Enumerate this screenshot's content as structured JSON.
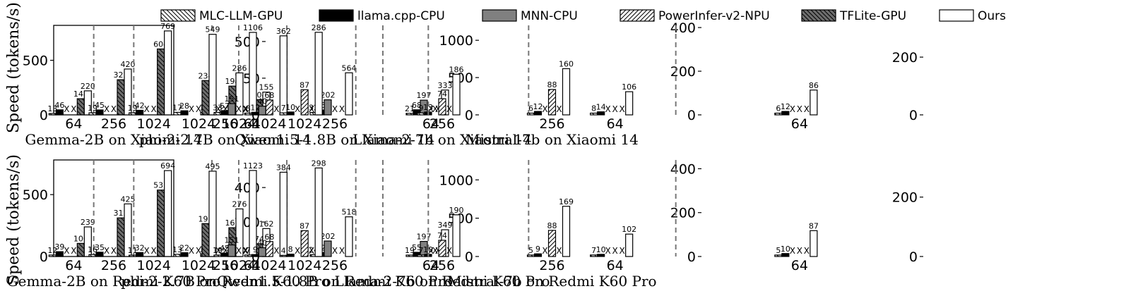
{
  "ylabel": "Speed (tokens/s)",
  "legend": [
    {
      "name": "MLC-LLM-GPU",
      "fill": "#ffffff",
      "hatch": "back"
    },
    {
      "name": "llama.cpp-CPU",
      "fill": "#000000",
      "hatch": "none"
    },
    {
      "name": "MNN-CPU",
      "fill": "#808080",
      "hatch": "none"
    },
    {
      "name": "PowerInfer-v2-NPU",
      "fill": "#ffffff",
      "hatch": "fwd"
    },
    {
      "name": "TFLite-GPU",
      "fill": "#6e6e6e",
      "hatch": "back"
    },
    {
      "name": "Ours",
      "fill": "#ffffff",
      "hatch": "none"
    }
  ],
  "unsupported_mark": "X",
  "chart_data": [
    {
      "type": "bar",
      "title": "Gemma-2B on Xiaomi 14",
      "categories": [
        "64",
        "256",
        "1024"
      ],
      "ylim": [
        0,
        820
      ],
      "yticks": [
        0,
        500
      ],
      "series": [
        {
          "name": "MLC-LLM-GPU",
          "values": [
            13,
            19,
            19
          ]
        },
        {
          "name": "llama.cpp-CPU",
          "values": [
            46,
            45,
            42
          ]
        },
        {
          "name": "MNN-CPU",
          "values": [
            null,
            null,
            null
          ]
        },
        {
          "name": "PowerInfer-v2-NPU",
          "values": [
            null,
            null,
            null
          ]
        },
        {
          "name": "TFLite-GPU",
          "values": [
            148,
            322,
            604
          ]
        },
        {
          "name": "Ours",
          "values": [
            220,
            420,
            769
          ]
        }
      ]
    },
    {
      "type": "bar",
      "title": "phi-2-2.7B on Xiaomi 14",
      "categories": [
        "64",
        "256",
        "1024"
      ],
      "ylim": [
        0,
        610
      ],
      "yticks": [
        0,
        250,
        500
      ],
      "series": [
        {
          "name": "MLC-LLM-GPU",
          "values": [
            14,
            17,
            17
          ]
        },
        {
          "name": "llama.cpp-CPU",
          "values": [
            33,
            32,
            28
          ]
        },
        {
          "name": "MNN-CPU",
          "values": [
            null,
            null,
            null
          ]
        },
        {
          "name": "PowerInfer-v2-NPU",
          "values": [
            null,
            null,
            null
          ]
        },
        {
          "name": "TFLite-GPU",
          "values": [
            104,
            196,
            234
          ]
        },
        {
          "name": "Ours",
          "values": [
            155,
            286,
            549
          ]
        }
      ]
    },
    {
      "type": "bar",
      "title": "Qwen1.5-1.8B on Xiaomi 14",
      "categories": [
        "64",
        "256",
        "1024"
      ],
      "ylim": [
        0,
        1200
      ],
      "yticks": [
        0,
        500,
        1000
      ],
      "series": [
        {
          "name": "MLC-LLM-GPU",
          "values": [
            21,
            32,
            33
          ]
        },
        {
          "name": "llama.cpp-CPU",
          "values": [
            68,
            65,
            57
          ]
        },
        {
          "name": "MNN-CPU",
          "values": [
            197,
            202,
            151
          ]
        },
        {
          "name": "PowerInfer-v2-NPU",
          "values": [
            null,
            null,
            null
          ]
        },
        {
          "name": "TFLite-GPU",
          "values": [
            null,
            null,
            null
          ]
        },
        {
          "name": "Ours",
          "values": [
            333,
            564,
            1106
          ]
        }
      ]
    },
    {
      "type": "bar",
      "title": "Llama-2-7b on Xiaomi 14",
      "categories": [
        "64",
        "256",
        "1024"
      ],
      "ylim": [
        0,
        410
      ],
      "yticks": [
        0,
        200,
        400
      ],
      "series": [
        {
          "name": "MLC-LLM-GPU",
          "values": [
            8,
            9,
            8
          ]
        },
        {
          "name": "llama.cpp-CPU",
          "values": [
            14,
            13,
            12
          ]
        },
        {
          "name": "MNN-CPU",
          "values": [
            null,
            null,
            40
          ]
        },
        {
          "name": "PowerInfer-v2-NPU",
          "values": [
            null,
            74,
            68
          ]
        },
        {
          "name": "TFLite-GPU",
          "values": [
            null,
            null,
            null
          ]
        },
        {
          "name": "Ours",
          "values": [
            106,
            186,
            362
          ]
        }
      ]
    },
    {
      "type": "bar",
      "title": "Mistral-7b on Xiaomi 14",
      "categories": [
        "64",
        "256",
        "1024"
      ],
      "ylim": [
        0,
        310
      ],
      "yticks": [
        0,
        200
      ],
      "series": [
        {
          "name": "MLC-LLM-GPU",
          "values": [
            6,
            6,
            7
          ]
        },
        {
          "name": "llama.cpp-CPU",
          "values": [
            12,
            12,
            10
          ]
        },
        {
          "name": "MNN-CPU",
          "values": [
            null,
            null,
            null
          ]
        },
        {
          "name": "PowerInfer-v2-NPU",
          "values": [
            null,
            88,
            87
          ]
        },
        {
          "name": "TFLite-GPU",
          "values": [
            null,
            null,
            null
          ]
        },
        {
          "name": "Ours",
          "values": [
            86,
            160,
            286
          ]
        }
      ]
    },
    {
      "type": "bar",
      "title": "Gemma-2B on Redmi K60 Pro",
      "categories": [
        "64",
        "256",
        "1024"
      ],
      "ylim": [
        0,
        780
      ],
      "yticks": [
        0,
        500
      ],
      "series": [
        {
          "name": "MLC-LLM-GPU",
          "values": [
            12,
            16,
            11
          ]
        },
        {
          "name": "llama.cpp-CPU",
          "values": [
            39,
            35,
            32
          ]
        },
        {
          "name": "MNN-CPU",
          "values": [
            null,
            null,
            null
          ]
        },
        {
          "name": "PowerInfer-v2-NPU",
          "values": [
            null,
            null,
            null
          ]
        },
        {
          "name": "TFLite-GPU",
          "values": [
            106,
            312,
            537
          ]
        },
        {
          "name": "Ours",
          "values": [
            239,
            425,
            694
          ]
        }
      ]
    },
    {
      "type": "bar",
      "title": "phi-2-2.7B on Redmi K60 Pro",
      "categories": [
        "64",
        "256",
        "1024"
      ],
      "ylim": [
        0,
        560
      ],
      "yticks": [
        0,
        200,
        400
      ],
      "series": [
        {
          "name": "MLC-LLM-GPU",
          "values": [
            12,
            14,
            13
          ]
        },
        {
          "name": "llama.cpp-CPU",
          "values": [
            26,
            25,
            22
          ]
        },
        {
          "name": "MNN-CPU",
          "values": [
            null,
            null,
            null
          ]
        },
        {
          "name": "PowerInfer-v2-NPU",
          "values": [
            null,
            null,
            null
          ]
        },
        {
          "name": "TFLite-GPU",
          "values": [
            74,
            167,
            191
          ]
        },
        {
          "name": "Ours",
          "values": [
            162,
            276,
            495
          ]
        }
      ]
    },
    {
      "type": "bar",
      "title": "Qwen1.5-1.8B on Redmi K60 Pro",
      "categories": [
        "64",
        "256",
        "1024"
      ],
      "ylim": [
        0,
        1260
      ],
      "yticks": [
        0,
        500,
        1000
      ],
      "series": [
        {
          "name": "MLC-LLM-GPU",
          "values": [
            19,
            24,
            19
          ]
        },
        {
          "name": "llama.cpp-CPU",
          "values": [
            55,
            52,
            45
          ]
        },
        {
          "name": "MNN-CPU",
          "values": [
            197,
            202,
            151
          ]
        },
        {
          "name": "PowerInfer-v2-NPU",
          "values": [
            null,
            null,
            null
          ]
        },
        {
          "name": "TFLite-GPU",
          "values": [
            null,
            null,
            null
          ]
        },
        {
          "name": "Ours",
          "values": [
            349,
            518,
            1123
          ]
        }
      ]
    },
    {
      "type": "bar",
      "title": "Llama-2-7b on Redmi K60 Pro",
      "categories": [
        "64",
        "256",
        "1024"
      ],
      "ylim": [
        0,
        440
      ],
      "yticks": [
        0,
        200,
        400
      ],
      "series": [
        {
          "name": "MLC-LLM-GPU",
          "values": [
            7,
            7,
            7
          ]
        },
        {
          "name": "llama.cpp-CPU",
          "values": [
            10,
            10,
            9
          ]
        },
        {
          "name": "MNN-CPU",
          "values": [
            null,
            null,
            40
          ]
        },
        {
          "name": "PowerInfer-v2-NPU",
          "values": [
            null,
            74,
            68
          ]
        },
        {
          "name": "TFLite-GPU",
          "values": [
            null,
            null,
            null
          ]
        },
        {
          "name": "Ours",
          "values": [
            102,
            190,
            384
          ]
        }
      ]
    },
    {
      "type": "bar",
      "title": "Mistral-7b on Redmi K60 Pro",
      "categories": [
        "64",
        "256",
        "1024"
      ],
      "ylim": [
        0,
        325
      ],
      "yticks": [
        0,
        200
      ],
      "series": [
        {
          "name": "MLC-LLM-GPU",
          "values": [
            5,
            5,
            4
          ]
        },
        {
          "name": "llama.cpp-CPU",
          "values": [
            10,
            9,
            8
          ]
        },
        {
          "name": "MNN-CPU",
          "values": [
            null,
            null,
            null
          ]
        },
        {
          "name": "PowerInfer-v2-NPU",
          "values": [
            null,
            88,
            87
          ]
        },
        {
          "name": "TFLite-GPU",
          "values": [
            null,
            null,
            null
          ]
        },
        {
          "name": "Ours",
          "values": [
            87,
            169,
            298
          ]
        }
      ]
    }
  ]
}
